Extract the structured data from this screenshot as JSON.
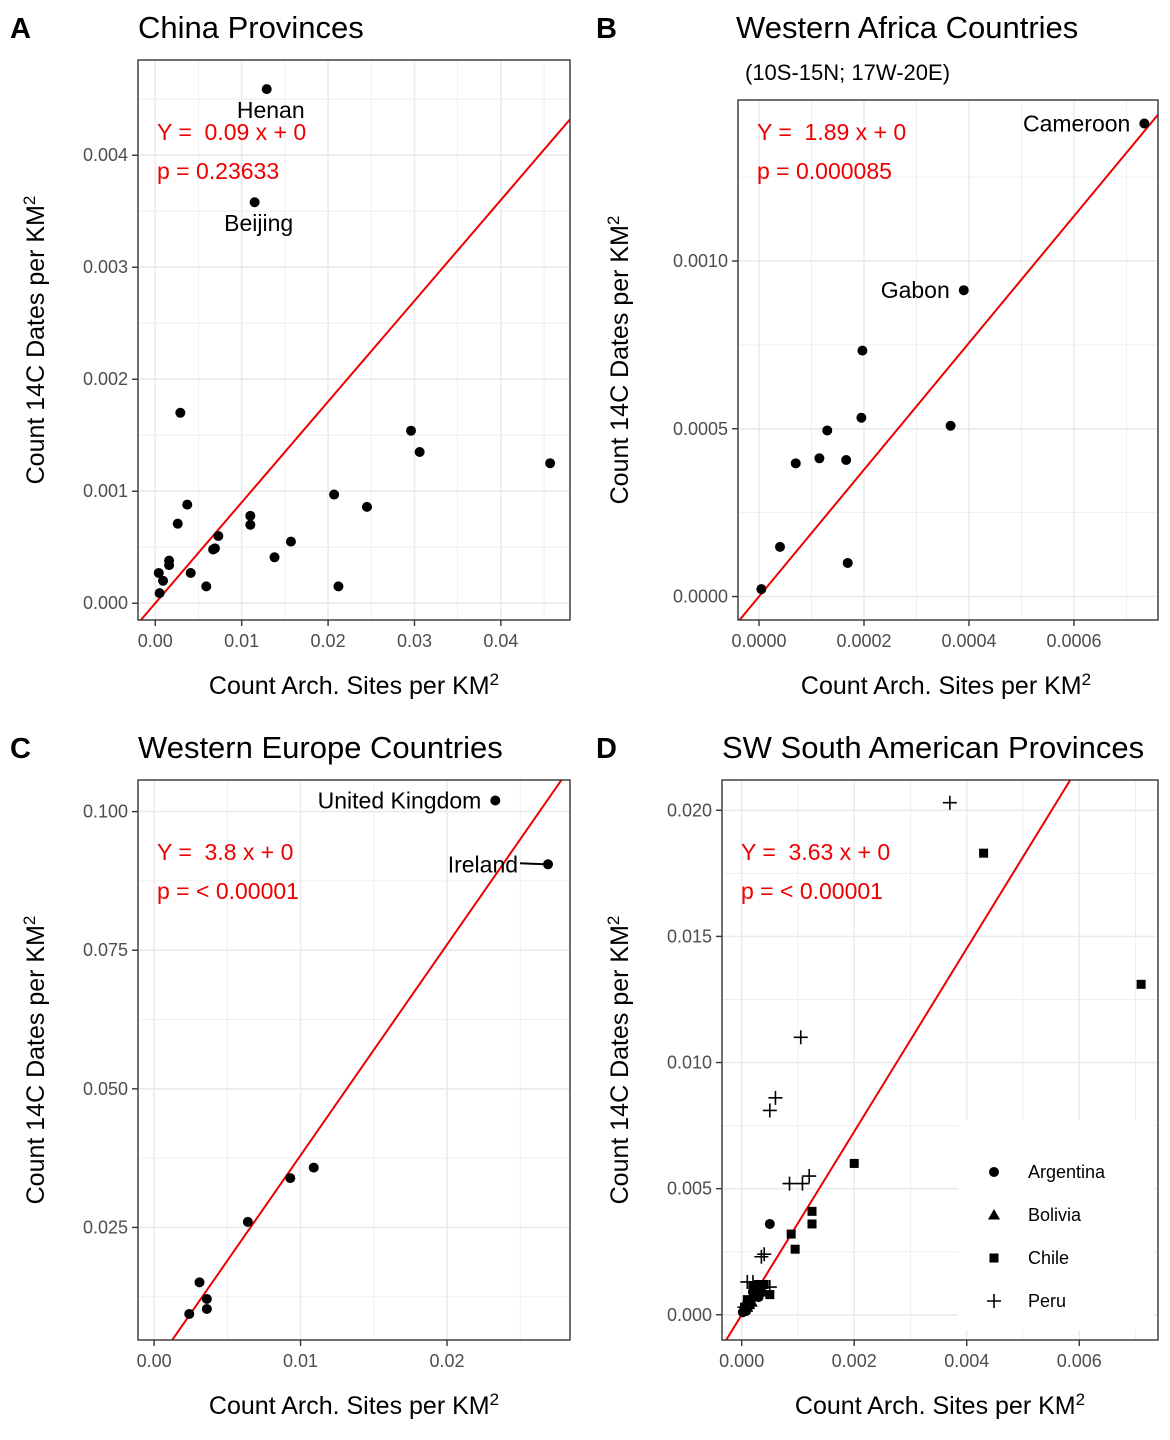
{
  "colors": {
    "regression": "#ee0000",
    "points": "#000000",
    "grid": "#ebebeb",
    "panel_border": "#333333",
    "tick_text": "#4d4d4d"
  },
  "chart_data": [
    {
      "panel_letter": "A",
      "type": "scatter",
      "title": "China Provinces",
      "subtitle": "",
      "xlabel": "Count Arch. Sites per KM",
      "ylabel": "Count 14C Dates per KM",
      "label_superscript": "2",
      "xlim": [
        -0.002,
        0.048
      ],
      "ylim": [
        -0.00015,
        0.00485
      ],
      "x_ticks": [
        0,
        0.01,
        0.02,
        0.03,
        0.04
      ],
      "x_tick_labels": [
        "0.00",
        "0.01",
        "0.02",
        "0.03",
        "0.04"
      ],
      "y_ticks": [
        0,
        0.001,
        0.002,
        0.003,
        0.004
      ],
      "y_tick_labels": [
        "0.000",
        "0.001",
        "0.002",
        "0.003",
        "0.004"
      ],
      "grid": true,
      "regression": {
        "slope": 0.09,
        "intercept": 0
      },
      "equation_text": "Y =  0.09 x + 0",
      "p_text": "p = 0.23633",
      "series": [
        {
          "marker": "circle",
          "points": [
            [
              0.0129,
              0.00459
            ],
            [
              0.0115,
              0.00358
            ],
            [
              0.0029,
              0.0017
            ],
            [
              0.0296,
              0.00154
            ],
            [
              0.0306,
              0.00135
            ],
            [
              0.0457,
              0.00125
            ],
            [
              0.0207,
              0.00097
            ],
            [
              0.0245,
              0.00086
            ],
            [
              0.0037,
              0.00088
            ],
            [
              0.011,
              0.00078
            ],
            [
              0.011,
              0.0007
            ],
            [
              0.0026,
              0.00071
            ],
            [
              0.0073,
              0.0006
            ],
            [
              0.0157,
              0.00055
            ],
            [
              0.0069,
              0.00049
            ],
            [
              0.0067,
              0.00048
            ],
            [
              0.0138,
              0.00041
            ],
            [
              0.0016,
              0.00038
            ],
            [
              0.0016,
              0.00034
            ],
            [
              0.0041,
              0.00027
            ],
            [
              0.0004,
              0.00027
            ],
            [
              0.0009,
              0.0002
            ],
            [
              0.0059,
              0.00015
            ],
            [
              0.0212,
              0.00015
            ],
            [
              0.0005,
              9e-05
            ]
          ]
        }
      ],
      "point_labels": [
        {
          "text": "Henan",
          "x": 0.0129,
          "y": 0.00459
        },
        {
          "text": "Beijing",
          "x": 0.0115,
          "y": 0.00358
        }
      ]
    },
    {
      "panel_letter": "B",
      "type": "scatter",
      "title": "Western Africa Countries",
      "subtitle": "(10S-15N; 17W-20E)",
      "xlabel": "Count Arch. Sites per KM",
      "ylabel": "Count 14C Dates per KM",
      "label_superscript": "2",
      "xlim": [
        -4e-05,
        0.00076
      ],
      "ylim": [
        -7e-05,
        0.00148
      ],
      "x_ticks": [
        0,
        0.0002,
        0.0004,
        0.0006
      ],
      "x_tick_labels": [
        "0.0000",
        "0.0002",
        "0.0004",
        "0.0006"
      ],
      "y_ticks": [
        0,
        0.0005,
        0.001
      ],
      "y_tick_labels": [
        "0.0000",
        "0.0005",
        "0.0010"
      ],
      "grid": true,
      "regression": {
        "slope": 1.89,
        "intercept": 0
      },
      "equation_text": "Y =  1.89 x + 0",
      "p_text": "p = 0.000085",
      "series": [
        {
          "marker": "circle",
          "points": [
            [
              0.000734,
              0.00141
            ],
            [
              0.00039,
              0.000913
            ],
            [
              0.000197,
              0.000733
            ],
            [
              0.000195,
              0.000533
            ],
            [
              0.000365,
              0.000509
            ],
            [
              0.00013,
              0.000495
            ],
            [
              0.000115,
              0.000412
            ],
            [
              0.000166,
              0.000407
            ],
            [
              7e-05,
              0.000397
            ],
            [
              4e-05,
              0.000148
            ],
            [
              0.000169,
              0.0001
            ],
            [
              4.5e-06,
              2.2e-05
            ]
          ]
        }
      ],
      "point_labels": [
        {
          "text": "Cameroon",
          "x": 0.000734,
          "y": 0.00141
        },
        {
          "text": "Gabon",
          "x": 0.00039,
          "y": 0.000913
        }
      ]
    },
    {
      "panel_letter": "C",
      "type": "scatter",
      "title": "Western Europe Countries",
      "subtitle": "",
      "xlabel": "Count Arch. Sites per KM",
      "ylabel": "Count 14C Dates per KM",
      "label_superscript": "2",
      "xlim": [
        -0.0011,
        0.0284
      ],
      "ylim": [
        0.0047,
        0.1057
      ],
      "x_ticks": [
        0,
        0.01,
        0.02
      ],
      "x_tick_labels": [
        "0.00",
        "0.01",
        "0.02"
      ],
      "y_ticks": [
        0.025,
        0.05,
        0.075,
        0.1
      ],
      "y_tick_labels": [
        "0.025",
        "0.050",
        "0.075",
        "0.100"
      ],
      "grid": true,
      "regression": {
        "slope": 3.8,
        "intercept": 0
      },
      "equation_text": "Y =  3.8 x + 0",
      "p_text": "p = < 0.00001",
      "series": [
        {
          "marker": "circle",
          "points": [
            [
              0.0233,
              0.102
            ],
            [
              0.0269,
              0.0905
            ],
            [
              0.0109,
              0.0358
            ],
            [
              0.0093,
              0.0339
            ],
            [
              0.0064,
              0.026
            ],
            [
              0.0031,
              0.0151
            ],
            [
              0.0036,
              0.0121
            ],
            [
              0.0036,
              0.0103
            ],
            [
              0.0024,
              0.0094
            ]
          ]
        }
      ],
      "point_labels": [
        {
          "text": "United Kingdom",
          "x": 0.0233,
          "y": 0.102
        },
        {
          "text": "Ireland",
          "x": 0.0269,
          "y": 0.0905
        }
      ]
    },
    {
      "panel_letter": "D",
      "type": "scatter",
      "title": "SW South American Provinces",
      "subtitle": "",
      "xlabel": "Count Arch. Sites per KM",
      "ylabel": "Count 14C Dates per KM",
      "label_superscript": "2",
      "xlim": [
        -0.00035,
        0.0074
      ],
      "ylim": [
        -0.001,
        0.0212
      ],
      "x_ticks": [
        0,
        0.002,
        0.004,
        0.006
      ],
      "x_tick_labels": [
        "0.000",
        "0.002",
        "0.004",
        "0.006"
      ],
      "y_ticks": [
        0,
        0.005,
        0.01,
        0.015,
        0.02
      ],
      "y_tick_labels": [
        "0.000",
        "0.005",
        "0.010",
        "0.015",
        "0.020"
      ],
      "grid": true,
      "regression": {
        "slope": 3.63,
        "intercept": 0
      },
      "equation_text": "Y =  3.63 x + 0",
      "p_text": "p = < 0.00001",
      "legend_position": "bottom-right",
      "series": [
        {
          "name": "Argentina",
          "marker": "circle",
          "points": [
            [
              0.0005,
              0.0036
            ],
            [
              0.0002,
              0.0009
            ],
            [
              0.0001,
              0.0005
            ],
            [
              0.00015,
              0.0004
            ],
            [
              5e-05,
              0.0002
            ],
            [
              8e-05,
              0.00015
            ],
            [
              0.0003,
              0.0007
            ],
            [
              2e-05,
              0.0001
            ]
          ]
        },
        {
          "name": "Bolivia",
          "marker": "triangle",
          "points": [
            [
              0.0001,
              0.0003
            ],
            [
              0.00018,
              0.0005
            ]
          ]
        },
        {
          "name": "Chile",
          "marker": "square",
          "points": [
            [
              0.0043,
              0.0183
            ],
            [
              0.0071,
              0.0131
            ],
            [
              0.002,
              0.006
            ],
            [
              0.00125,
              0.0041
            ],
            [
              0.00125,
              0.0036
            ],
            [
              0.00088,
              0.0032
            ],
            [
              0.00095,
              0.0026
            ],
            [
              0.0004,
              0.0012
            ],
            [
              0.0003,
              0.0012
            ],
            [
              0.0005,
              0.0008
            ],
            [
              0.0002,
              0.0011
            ],
            [
              0.00035,
              0.0009
            ],
            [
              0.0001,
              0.0006
            ],
            [
              0.00015,
              0.0004
            ],
            [
              5e-05,
              0.0003
            ],
            [
              0.00025,
              0.0007
            ]
          ]
        },
        {
          "name": "Peru",
          "marker": "plus",
          "points": [
            [
              0.0037,
              0.0203
            ],
            [
              0.00105,
              0.011
            ],
            [
              0.0006,
              0.0086
            ],
            [
              0.0005,
              0.0081
            ],
            [
              0.0012,
              0.0055
            ],
            [
              0.00108,
              0.0052
            ],
            [
              0.00085,
              0.0052
            ],
            [
              0.0004,
              0.0024
            ],
            [
              0.00035,
              0.0023
            ],
            [
              0.0005,
              0.0011
            ],
            [
              0.0002,
              0.0013
            ],
            [
              0.0001,
              0.0013
            ],
            [
              0.0003,
              0.0008
            ],
            [
              0.00015,
              0.0006
            ],
            [
              5e-05,
              0.0003
            ]
          ]
        }
      ],
      "point_labels": []
    }
  ]
}
